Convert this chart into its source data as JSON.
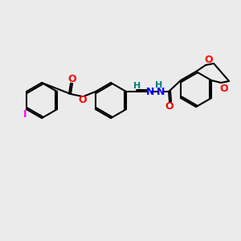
{
  "background_color": "#ebebeb",
  "bond_color": "#000000",
  "bond_width": 1.5,
  "atom_colors": {
    "O": "#ff0000",
    "N": "#0000ff",
    "I": "#ff00ff",
    "H_label": "#008080",
    "C": "#000000"
  },
  "font_size": 8
}
